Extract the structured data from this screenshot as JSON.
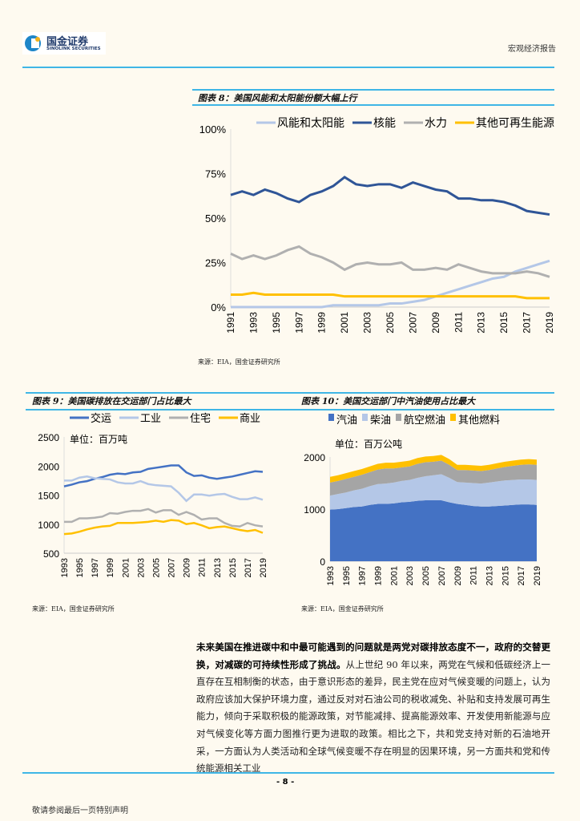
{
  "header": {
    "brand_cn": "国金证券",
    "brand_en": "SINOLINK SECURITIES",
    "report_type": "宏观经济报告"
  },
  "colors": {
    "rule": "#3fb6e6",
    "wind_solar": "#b4c7e7",
    "nuclear": "#2f5597",
    "hydro": "#b0b0b0",
    "other": "#ffc000",
    "transport": "#4472c4",
    "industry": "#b4c7e7",
    "residential": "#b0b0b0",
    "commercial": "#ffc000"
  },
  "figures": [
    {
      "title": "图表 8：美国风能和太阳能份额大幅上行",
      "source": "来源：EIA，国金证券研究所"
    },
    {
      "title": "图表 9：美国碳排放在交运部门占比最大",
      "source": "来源：EIA，国金证券研究所"
    },
    {
      "title": "图表 10：美国交运部门中汽油使用占比最大",
      "source": "来源：EIA，国金证券研究所"
    }
  ],
  "chart_data": [
    {
      "type": "line",
      "ylim": [
        0,
        100
      ],
      "yticks": [
        "0%",
        "25%",
        "50%",
        "75%",
        "100%"
      ],
      "legend_position": "top",
      "x": [
        1991,
        1992,
        1993,
        1994,
        1995,
        1996,
        1997,
        1998,
        1999,
        2000,
        2001,
        2002,
        2003,
        2004,
        2005,
        2006,
        2007,
        2008,
        2009,
        2010,
        2011,
        2012,
        2013,
        2014,
        2015,
        2016,
        2017,
        2018,
        2019
      ],
      "series": [
        {
          "name": "风能和太阳能",
          "values": [
            0,
            0,
            0,
            0,
            0,
            0,
            0,
            0,
            0,
            1,
            1,
            1,
            1,
            1,
            2,
            2,
            3,
            4,
            6,
            8,
            10,
            12,
            14,
            16,
            17,
            20,
            22,
            24,
            26
          ]
        },
        {
          "name": "核能",
          "values": [
            63,
            65,
            63,
            66,
            64,
            61,
            59,
            63,
            65,
            68,
            73,
            69,
            68,
            69,
            69,
            67,
            70,
            68,
            66,
            65,
            61,
            61,
            60,
            60,
            59,
            57,
            54,
            53,
            52
          ]
        },
        {
          "name": "水力",
          "values": [
            30,
            27,
            29,
            27,
            29,
            32,
            34,
            30,
            28,
            25,
            21,
            24,
            25,
            24,
            24,
            25,
            21,
            21,
            22,
            21,
            24,
            22,
            20,
            19,
            19,
            19,
            20,
            19,
            17
          ]
        },
        {
          "name": "其他可再生能源",
          "values": [
            7,
            7,
            8,
            7,
            7,
            7,
            7,
            7,
            7,
            7,
            6,
            6,
            6,
            6,
            6,
            6,
            6,
            6,
            6,
            6,
            6,
            6,
            6,
            6,
            6,
            6,
            5,
            5,
            5
          ]
        }
      ]
    },
    {
      "type": "line",
      "unit": "单位：百万吨",
      "ylim": [
        500,
        2500
      ],
      "yticks": [
        "500",
        "1000",
        "1500",
        "2000",
        "2500"
      ],
      "legend_position": "top",
      "x": [
        1993,
        1994,
        1995,
        1996,
        1997,
        1998,
        1999,
        2000,
        2001,
        2002,
        2003,
        2004,
        2005,
        2006,
        2007,
        2008,
        2009,
        2010,
        2011,
        2012,
        2013,
        2014,
        2015,
        2016,
        2017,
        2018,
        2019
      ],
      "series": [
        {
          "name": "交运",
          "values": [
            1650,
            1680,
            1720,
            1740,
            1780,
            1810,
            1850,
            1870,
            1860,
            1890,
            1900,
            1950,
            1970,
            1990,
            2010,
            2010,
            1890,
            1830,
            1840,
            1800,
            1780,
            1800,
            1820,
            1850,
            1880,
            1910,
            1900
          ]
        },
        {
          "name": "工业",
          "values": [
            1750,
            1750,
            1800,
            1820,
            1790,
            1780,
            1770,
            1720,
            1700,
            1700,
            1740,
            1690,
            1670,
            1660,
            1650,
            1540,
            1400,
            1510,
            1510,
            1490,
            1510,
            1520,
            1470,
            1430,
            1430,
            1460,
            1420
          ]
        },
        {
          "name": "住宅",
          "values": [
            1040,
            1040,
            1100,
            1100,
            1110,
            1130,
            1190,
            1180,
            1210,
            1230,
            1230,
            1260,
            1200,
            1240,
            1240,
            1160,
            1210,
            1160,
            1080,
            1100,
            1100,
            1020,
            970,
            960,
            1020,
            980,
            960
          ]
        },
        {
          "name": "商业",
          "values": [
            830,
            840,
            870,
            910,
            940,
            960,
            970,
            1020,
            1020,
            1020,
            1030,
            1040,
            1060,
            1040,
            1070,
            1060,
            1000,
            1020,
            980,
            930,
            950,
            960,
            930,
            900,
            880,
            900,
            850
          ]
        }
      ]
    },
    {
      "type": "area",
      "stacked": true,
      "unit": "单位：百万公吨",
      "ylim": [
        0,
        2000
      ],
      "yticks": [
        "0",
        "1000",
        "2000"
      ],
      "legend_position": "top",
      "x": [
        1993,
        1994,
        1995,
        1996,
        1997,
        1998,
        1999,
        2000,
        2001,
        2002,
        2003,
        2004,
        2005,
        2006,
        2007,
        2008,
        2009,
        2010,
        2011,
        2012,
        2013,
        2014,
        2015,
        2016,
        2017,
        2018,
        2019
      ],
      "series": [
        {
          "name": "汽油",
          "values": [
            990,
            1000,
            1020,
            1040,
            1050,
            1080,
            1100,
            1100,
            1110,
            1130,
            1140,
            1160,
            1170,
            1170,
            1170,
            1130,
            1100,
            1080,
            1060,
            1050,
            1050,
            1060,
            1070,
            1080,
            1090,
            1090,
            1080
          ]
        },
        {
          "name": "柴油",
          "values": [
            270,
            290,
            300,
            320,
            340,
            360,
            380,
            390,
            400,
            410,
            420,
            440,
            460,
            480,
            500,
            470,
            420,
            430,
            440,
            440,
            460,
            470,
            480,
            480,
            480,
            480,
            480
          ]
        },
        {
          "name": "航空燃油",
          "values": [
            250,
            250,
            260,
            260,
            270,
            270,
            280,
            290,
            270,
            260,
            260,
            270,
            270,
            260,
            260,
            250,
            230,
            240,
            240,
            240,
            240,
            250,
            260,
            270,
            280,
            290,
            290
          ]
        },
        {
          "name": "其他燃料",
          "values": [
            110,
            110,
            110,
            110,
            110,
            110,
            110,
            110,
            110,
            110,
            110,
            110,
            110,
            110,
            110,
            110,
            100,
            100,
            100,
            100,
            100,
            100,
            100,
            100,
            100,
            100,
            100
          ]
        }
      ]
    }
  ],
  "body": {
    "bold": "未来美国在推进碳中和中最可能遇到的问题就是两党对碳排放态度不一，政府的交替更换，对减碳的可持续性形成了挑战。",
    "text": "从上世纪 90 年以来，两党在气候和低碳经济上一直存在互相制衡的状态，由于意识形态的差异，民主党在应对气候变暖的问题上，认为政府应该加大保护环境力度，通过反对对石油公司的税收减免、补贴和支持发展可再生能力，倾向于采取积极的能源政策，对节能减排、提高能源效率、开发使用新能源与应对气候变化等方面力图推行更为进取的政策。相比之下，共和党支持对新的石油地开采，一方面认为人类活动和全球气候变暖不存在明显的因果环境，另一方面共和党和传统能源相关工业"
  },
  "footer": {
    "page": "- 8 -",
    "disclaimer": "敬请参阅最后一页特别声明"
  }
}
